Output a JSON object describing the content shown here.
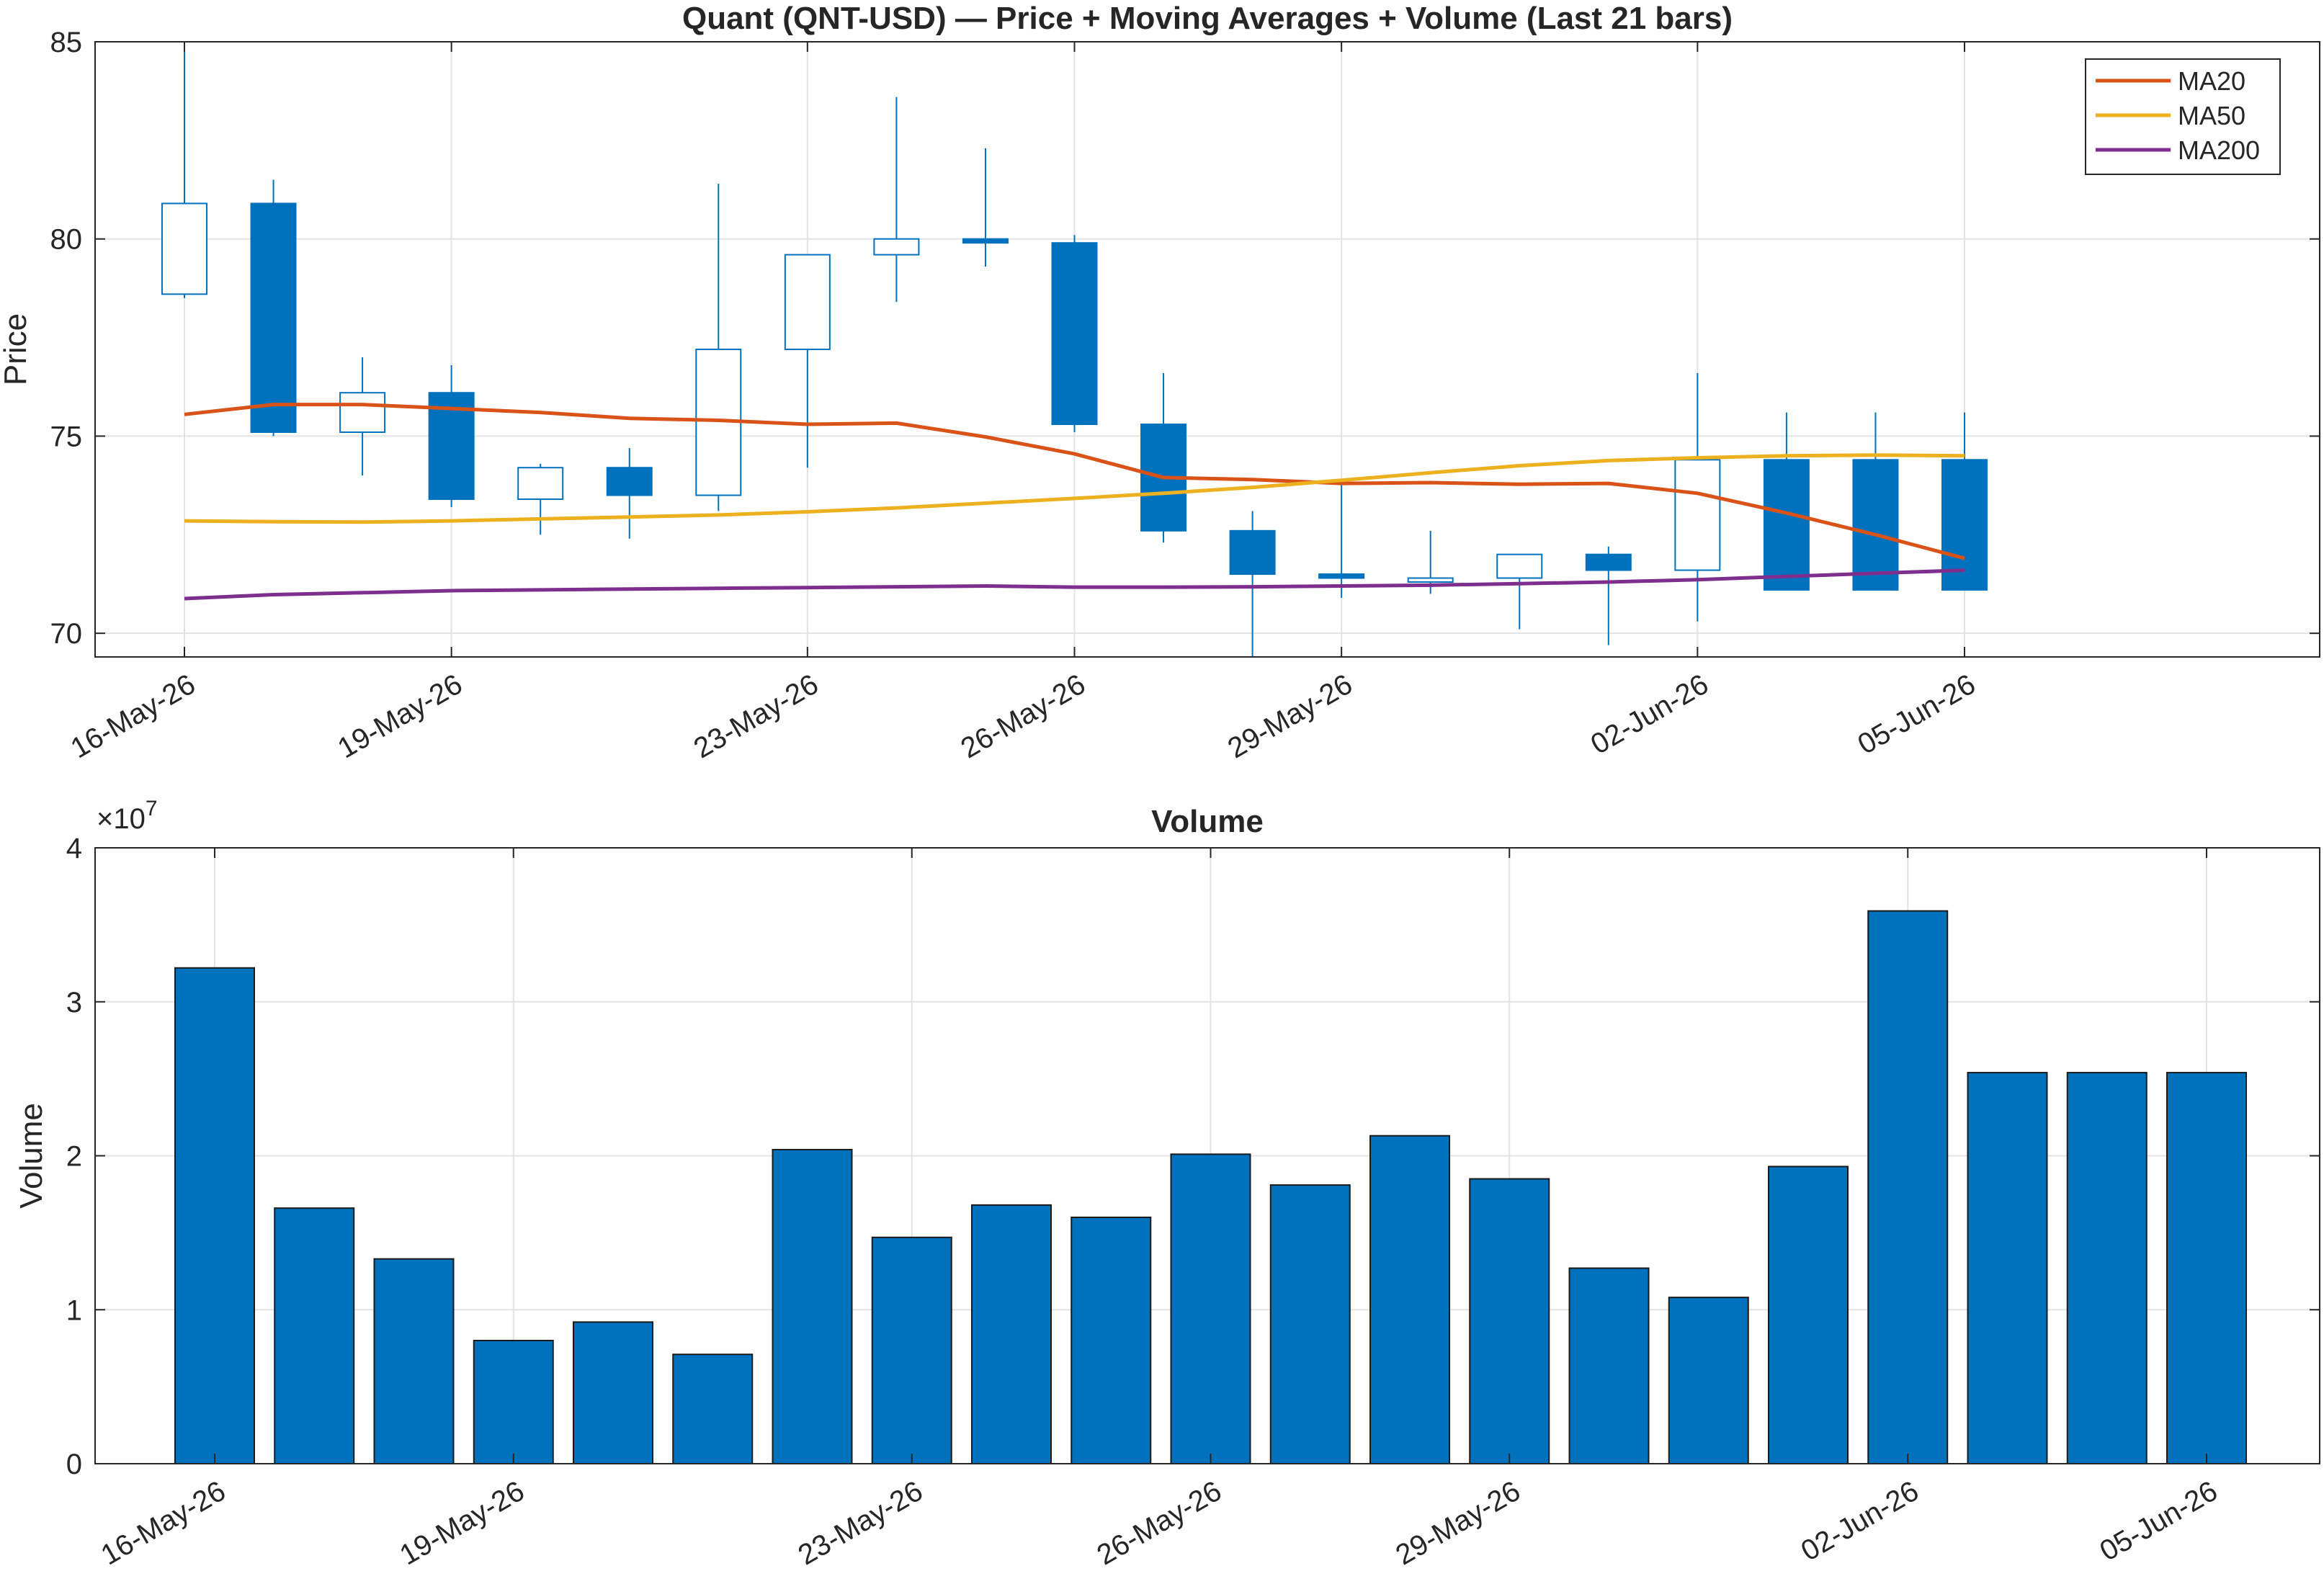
{
  "chart_data": [
    {
      "type": "candlestick",
      "title": "Quant (QNT-USD) — Price + Moving Averages + Volume (Last 21 bars)",
      "xlabel": "",
      "ylabel": "Price",
      "ylim": [
        69.4,
        85
      ],
      "yticks": [
        70,
        75,
        80,
        85
      ],
      "grid": true,
      "legend_position": "top-right",
      "dates": [
        "16-May-26",
        "17-May-26",
        "18-May-26",
        "19-May-26",
        "20-May-26",
        "21-May-26",
        "22-May-26",
        "23-May-26",
        "24-May-26",
        "25-May-26",
        "26-May-26",
        "27-May-26",
        "28-May-26",
        "29-May-26",
        "30-May-26",
        "31-May-26",
        "01-Jun-26",
        "02-Jun-26",
        "03-Jun-26",
        "04-Jun-26",
        "05-Jun-26"
      ],
      "xtick_labels": [
        "16-May-26",
        "19-May-26",
        "23-May-26",
        "26-May-26",
        "29-May-26",
        "02-Jun-26",
        "05-Jun-26"
      ],
      "open": [
        78.6,
        80.9,
        75.1,
        76.1,
        73.4,
        74.2,
        73.5,
        77.2,
        79.6,
        80.0,
        79.9,
        75.3,
        72.6,
        71.5,
        71.3,
        71.4,
        72.0,
        71.6,
        74.4,
        74.4,
        74.4
      ],
      "high": [
        85.0,
        81.5,
        77.0,
        76.8,
        74.3,
        74.7,
        81.4,
        79.6,
        83.6,
        82.3,
        80.1,
        76.6,
        73.1,
        73.8,
        72.6,
        72.0,
        72.2,
        76.6,
        75.6,
        75.6,
        75.6
      ],
      "low": [
        78.5,
        75.0,
        74.0,
        73.2,
        72.5,
        72.4,
        73.1,
        74.2,
        78.4,
        79.3,
        75.1,
        72.3,
        69.4,
        70.9,
        71.0,
        70.1,
        69.7,
        70.3,
        71.1,
        71.1,
        71.1
      ],
      "close": [
        80.9,
        75.1,
        76.1,
        73.4,
        74.2,
        73.5,
        77.2,
        79.6,
        80.0,
        79.9,
        75.3,
        72.6,
        71.5,
        71.4,
        71.4,
        72.0,
        71.6,
        74.4,
        71.1,
        71.1,
        71.1
      ],
      "series": [
        {
          "name": "MA20",
          "color": "#D95319",
          "values": [
            75.55,
            75.8,
            75.8,
            75.7,
            75.6,
            75.45,
            75.4,
            75.3,
            75.33,
            74.98,
            74.55,
            73.95,
            73.9,
            73.8,
            73.82,
            73.78,
            73.8,
            73.55,
            73.05,
            72.5,
            71.9
          ]
        },
        {
          "name": "MA50",
          "color": "#EDB120",
          "values": [
            72.85,
            72.83,
            72.82,
            72.85,
            72.9,
            72.95,
            73.0,
            73.08,
            73.18,
            73.3,
            73.42,
            73.55,
            73.7,
            73.88,
            74.07,
            74.25,
            74.38,
            74.45,
            74.5,
            74.52,
            74.5
          ]
        },
        {
          "name": "MA200",
          "color": "#7E2F8E",
          "values": [
            70.88,
            70.98,
            71.03,
            71.08,
            71.1,
            71.12,
            71.14,
            71.16,
            71.18,
            71.2,
            71.17,
            71.17,
            71.18,
            71.2,
            71.22,
            71.26,
            71.3,
            71.36,
            71.44,
            71.52,
            71.6
          ]
        }
      ],
      "up_color": "#0072BD",
      "down_color": "#0072BD"
    },
    {
      "type": "bar",
      "title": "Volume",
      "xlabel": "",
      "ylabel": "Volume",
      "y_exponent_label": "×10",
      "y_exponent_value": "7",
      "ylim": [
        0,
        4
      ],
      "yticks": [
        0,
        1,
        2,
        3,
        4
      ],
      "grid": true,
      "categories": [
        "16-May-26",
        "17-May-26",
        "18-May-26",
        "19-May-26",
        "20-May-26",
        "21-May-26",
        "22-May-26",
        "23-May-26",
        "24-May-26",
        "25-May-26",
        "26-May-26",
        "27-May-26",
        "28-May-26",
        "29-May-26",
        "30-May-26",
        "31-May-26",
        "01-Jun-26",
        "02-Jun-26",
        "03-Jun-26",
        "04-Jun-26",
        "05-Jun-26"
      ],
      "xtick_labels": [
        "16-May-26",
        "19-May-26",
        "23-May-26",
        "26-May-26",
        "29-May-26",
        "02-Jun-26",
        "05-Jun-26"
      ],
      "values": [
        3.22,
        1.66,
        1.33,
        0.8,
        0.92,
        0.71,
        2.04,
        1.47,
        1.68,
        1.6,
        2.01,
        1.81,
        2.13,
        1.85,
        1.27,
        1.08,
        1.93,
        3.59,
        2.54,
        2.54,
        2.54
      ],
      "bar_color": "#0072BD"
    }
  ]
}
